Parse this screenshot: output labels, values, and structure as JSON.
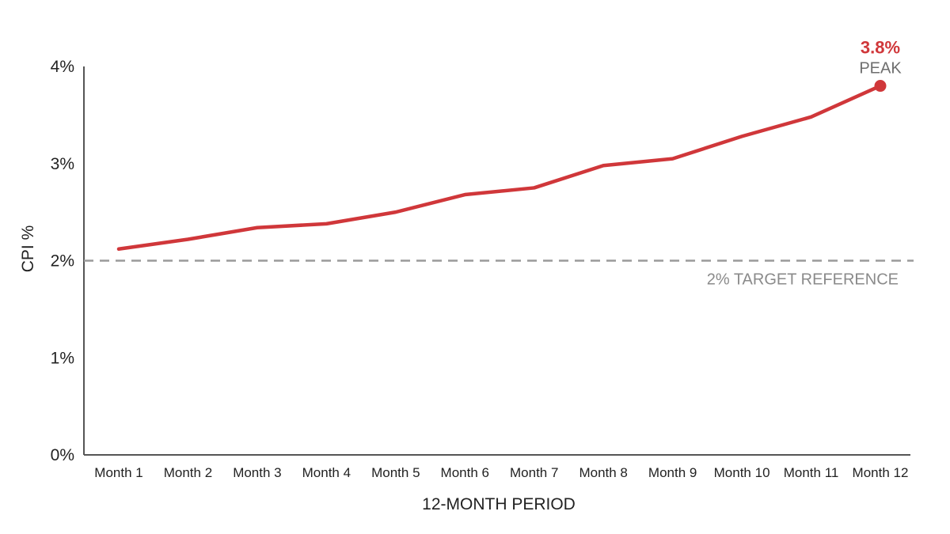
{
  "chart_data": {
    "type": "line",
    "title": "",
    "xlabel": "12-MONTH PERIOD",
    "ylabel": "CPI %",
    "categories": [
      "Month 1",
      "Month 2",
      "Month 3",
      "Month 4",
      "Month 5",
      "Month 6",
      "Month 7",
      "Month 8",
      "Month 9",
      "Month 10",
      "Month 11",
      "Month 12"
    ],
    "series": [
      {
        "values": [
          2.12,
          2.22,
          2.34,
          2.38,
          2.5,
          2.68,
          2.75,
          2.98,
          3.05,
          3.28,
          3.48,
          3.8
        ],
        "color": "#d0373a"
      }
    ],
    "ylim": [
      0,
      4
    ],
    "yticks": [
      0,
      1,
      2,
      3,
      4
    ],
    "ytick_labels": [
      "0%",
      "1%",
      "2%",
      "3%",
      "4%"
    ],
    "grid": false,
    "reference_line": {
      "value": 2,
      "label": "2% TARGET REFERENCE",
      "color": "#9a9a9a",
      "style": "dashed"
    },
    "annotation": {
      "category": "Month 12",
      "value_text": "3.8%",
      "label": "PEAK",
      "color": "#d0373a"
    }
  }
}
